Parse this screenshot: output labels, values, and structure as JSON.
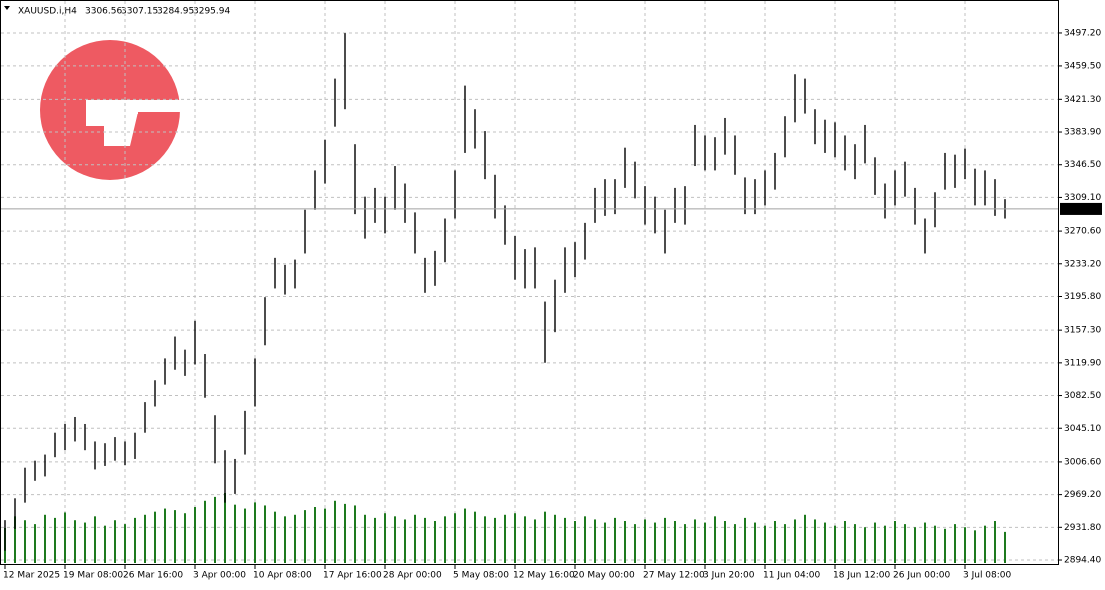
{
  "chart_data": {
    "type": "ohlc",
    "symbol": "XAUUSD.i,H4",
    "ohlc": [
      3306.56,
      3307.15,
      3284.95,
      3295.94
    ],
    "ylim": [
      2888.7,
      3534.9
    ],
    "yticks": [
      {
        "value": 3497.2,
        "label": "3497.20"
      },
      {
        "value": 3459.5,
        "label": "3459.50"
      },
      {
        "value": 3421.3,
        "label": "3421.30"
      },
      {
        "value": 3383.9,
        "label": "3383.90"
      },
      {
        "value": 3346.5,
        "label": "3346.50"
      },
      {
        "value": 3309.1,
        "label": "3309.10"
      },
      {
        "value": 3270.6,
        "label": "3270.60"
      },
      {
        "value": 3233.2,
        "label": "3233.20"
      },
      {
        "value": 3195.8,
        "label": "3195.80"
      },
      {
        "value": 3157.3,
        "label": "3157.30"
      },
      {
        "value": 3119.9,
        "label": "3119.90"
      },
      {
        "value": 3082.5,
        "label": "3082.50"
      },
      {
        "value": 3045.1,
        "label": "3045.10"
      },
      {
        "value": 3006.6,
        "label": "3006.60"
      },
      {
        "value": 2969.2,
        "label": "2969.20"
      },
      {
        "value": 2931.8,
        "label": "2931.80"
      },
      {
        "value": 2894.4,
        "label": "2894.40"
      }
    ],
    "grid": true,
    "color": "#000000",
    "volume_color": "#1e7a1e",
    "categories": [
      "12 Mar 2025",
      null,
      null,
      null,
      null,
      null,
      "19 Mar 08:00",
      null,
      null,
      null,
      null,
      null,
      "26 Mar 16:00",
      null,
      null,
      null,
      null,
      null,
      null,
      "3 Apr 00:00",
      null,
      null,
      null,
      null,
      null,
      "10 Apr 08:00",
      null,
      null,
      null,
      null,
      null,
      null,
      "17 Apr 16:00",
      null,
      null,
      null,
      null,
      null,
      "28 Apr 00:00",
      null,
      null,
      null,
      null,
      null,
      null,
      "5 May 08:00",
      null,
      null,
      null,
      null,
      null,
      "12 May 16:00",
      null,
      null,
      null,
      null,
      null,
      "20 May 00:00",
      null,
      null,
      null,
      null,
      null,
      null,
      "27 May 12:00",
      null,
      null,
      null,
      null,
      null,
      "3 Jun 20:00",
      null,
      null,
      null,
      null,
      null,
      "11 Jun 04:00",
      null,
      null,
      null,
      null,
      null,
      null,
      "18 Jun 12:00",
      null,
      null,
      null,
      null,
      null,
      "26 Jun 00:00",
      null,
      null,
      null,
      null,
      null,
      null,
      "3 Jul 08:00",
      null,
      null,
      null,
      null
    ],
    "high": [
      2940,
      2965,
      3000,
      3008,
      3015,
      3040,
      3050,
      3058,
      3050,
      3030,
      3028,
      3035,
      3030,
      3040,
      3075,
      3100,
      3125,
      3150,
      3135,
      3168,
      3130,
      3060,
      3020,
      3010,
      3065,
      3125,
      3195,
      3240,
      3232,
      3238,
      3295,
      3340,
      3375,
      3445,
      3497,
      3370,
      3310,
      3320,
      3310,
      3345,
      3325,
      3292,
      3240,
      3248,
      3285,
      3340,
      3437,
      3410,
      3385,
      3335,
      3300,
      3265,
      3250,
      3252,
      3190,
      3215,
      3252,
      3258,
      3280,
      3320,
      3330,
      3330,
      3366,
      3350,
      3322,
      3310,
      3295,
      3320,
      3322,
      3392,
      3380,
      3378,
      3400,
      3380,
      3332,
      3330,
      3340,
      3360,
      3402,
      3450,
      3445,
      3410,
      3398,
      3395,
      3380,
      3370,
      3392,
      3355,
      3325,
      3340,
      3350,
      3320,
      3285,
      3315,
      3360,
      3358,
      3365,
      3342,
      3340,
      3330,
      3307.15
    ],
    "low": [
      2905,
      2930,
      2960,
      2985,
      2990,
      3012,
      3020,
      3030,
      3020,
      2998,
      3002,
      3008,
      3003,
      3010,
      3040,
      3070,
      3095,
      3112,
      3105,
      3118,
      3080,
      3005,
      2960,
      2970,
      3015,
      3070,
      3140,
      3205,
      3198,
      3205,
      3245,
      3295,
      3325,
      3390,
      3410,
      3290,
      3262,
      3280,
      3268,
      3295,
      3280,
      3245,
      3200,
      3208,
      3235,
      3285,
      3360,
      3365,
      3330,
      3285,
      3255,
      3215,
      3205,
      3205,
      3120,
      3155,
      3200,
      3218,
      3238,
      3280,
      3288,
      3290,
      3320,
      3308,
      3278,
      3268,
      3245,
      3280,
      3278,
      3345,
      3340,
      3340,
      3358,
      3335,
      3290,
      3290,
      3300,
      3318,
      3355,
      3395,
      3405,
      3370,
      3360,
      3355,
      3340,
      3330,
      3348,
      3312,
      3285,
      3300,
      3310,
      3278,
      3245,
      3275,
      3318,
      3320,
      3330,
      3300,
      3300,
      3288,
      3284.95
    ],
    "volume": [
      45,
      60,
      55,
      50,
      62,
      58,
      65,
      55,
      52,
      60,
      48,
      55,
      50,
      58,
      62,
      66,
      70,
      68,
      64,
      72,
      80,
      85,
      90,
      75,
      70,
      78,
      74,
      66,
      60,
      62,
      68,
      72,
      70,
      80,
      76,
      74,
      62,
      58,
      64,
      60,
      56,
      62,
      58,
      54,
      60,
      64,
      70,
      66,
      60,
      58,
      62,
      64,
      60,
      56,
      66,
      62,
      58,
      54,
      60,
      56,
      52,
      58,
      54,
      50,
      56,
      52,
      58,
      54,
      50,
      56,
      52,
      60,
      54,
      50,
      58,
      52,
      48,
      54,
      50,
      56,
      62,
      56,
      52,
      48,
      54,
      50,
      46,
      52,
      48,
      54,
      50,
      46,
      52,
      48,
      44,
      50,
      46,
      42,
      48,
      54,
      40
    ]
  }
}
